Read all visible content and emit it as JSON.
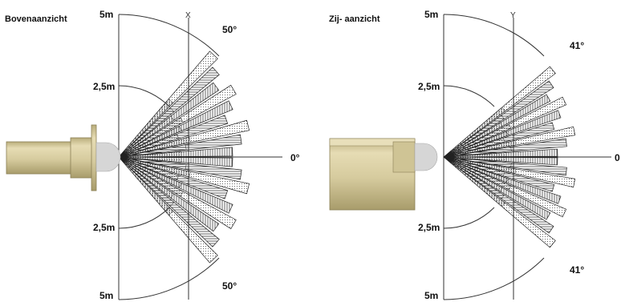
{
  "left_panel": {
    "title": "Bovenaanzicht",
    "top_distance": "5m",
    "upper_mid_distance": "2,5m",
    "lower_mid_distance": "2,5m",
    "bottom_distance": "5m",
    "axis_label": "X",
    "upper_angle": "50°",
    "lower_angle": "50°",
    "zero_angle": "0°"
  },
  "right_panel": {
    "title": "Zij- aanzicht",
    "top_distance": "5m",
    "upper_mid_distance": "2,5m",
    "lower_mid_distance": "2,5m",
    "bottom_distance": "5m",
    "axis_label": "Y",
    "upper_angle": "41°",
    "lower_angle": "41°",
    "zero_angle": "0"
  },
  "colors": {
    "sensor_body": "#d4c9a0",
    "sensor_edge": "#8a7f55",
    "lens": "#d6d6d6",
    "lines": "#222222"
  }
}
